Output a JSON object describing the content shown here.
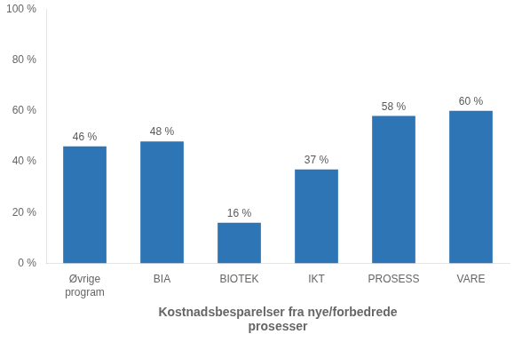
{
  "chart_data": {
    "type": "bar",
    "xlabel": "Kostnadsbesparelser fra nye/forbedrede\nprosesser",
    "categories": [
      "Øvrige\nprogram",
      "BIA",
      "BIOTEK",
      "IKT",
      "PROSESS",
      "VARE"
    ],
    "values": [
      46,
      48,
      16,
      37,
      58,
      60
    ],
    "value_labels": [
      "46 %",
      "48 %",
      "16 %",
      "37 %",
      "58 %",
      "60 %"
    ],
    "data_labels": true,
    "color": "#2E75B6",
    "ylim": [
      0,
      100
    ],
    "yticks": [
      {
        "value": 0,
        "label": "0 %"
      },
      {
        "value": 20,
        "label": "20 %"
      },
      {
        "value": 40,
        "label": "40 %"
      },
      {
        "value": 60,
        "label": "60 %"
      },
      {
        "value": 80,
        "label": "80 %"
      },
      {
        "value": 100,
        "label": "100 %"
      }
    ],
    "grid": false
  }
}
